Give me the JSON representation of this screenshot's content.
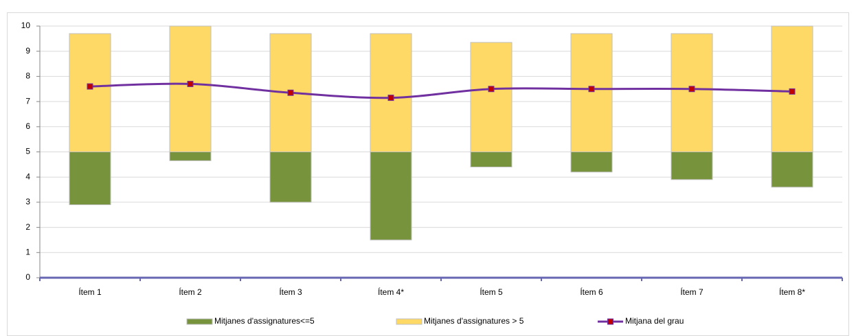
{
  "chart_data": {
    "type": "floating-bar-line",
    "categories": [
      "Ítem 1",
      "Ítem 2",
      "Ítem 3",
      "Ítem 4*",
      "Ítem 5",
      "Ítem 6",
      "Ítem 7",
      "Ítem 8*"
    ],
    "base": 5,
    "series": [
      {
        "name": "Mitjanes d'assignatures<=5",
        "type": "bar",
        "color": "#77933c",
        "values": [
          2.9,
          4.65,
          3.0,
          1.5,
          4.4,
          4.2,
          3.9,
          3.6
        ]
      },
      {
        "name": "Mitjanes d'assignatures > 5",
        "type": "bar",
        "color": "#ffd966",
        "values": [
          9.7,
          10,
          9.7,
          9.7,
          9.35,
          9.7,
          9.7,
          10
        ]
      },
      {
        "name": "Mitjana del grau",
        "type": "line",
        "color": "#7030a0",
        "marker_color": "#c00000",
        "values": [
          7.6,
          7.7,
          7.35,
          7.15,
          7.5,
          7.5,
          7.5,
          7.4
        ]
      }
    ],
    "ylim": [
      0,
      10
    ],
    "yticks": [
      0,
      1,
      2,
      3,
      4,
      5,
      6,
      7,
      8,
      9,
      10
    ],
    "grid": true,
    "legend": "bottom"
  }
}
